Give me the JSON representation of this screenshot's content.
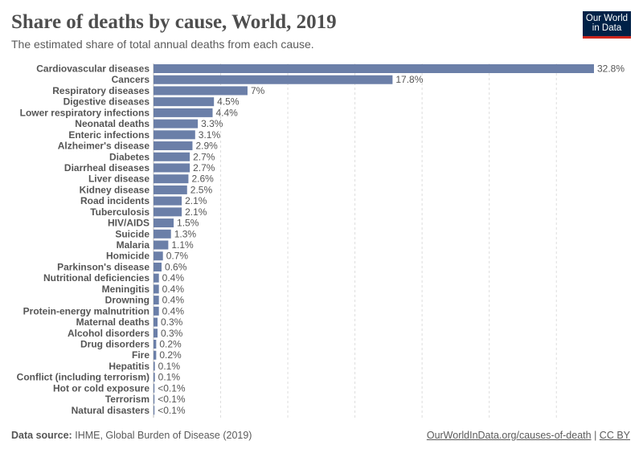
{
  "header": {
    "title": "Share of deaths by cause, World, 2019",
    "subtitle": "The estimated share of total annual deaths from each cause.",
    "logo_text": "Our World in Data"
  },
  "footer": {
    "source_label": "Data source:",
    "source_text": "IHME, Global Burden of Disease (2019)",
    "link": "OurWorldInData.org/causes-of-death",
    "separator": "|",
    "license": "CC BY"
  },
  "colors": {
    "bar": "#6b7fa8",
    "logo_bg": "#002147",
    "logo_accent": "#ce261e"
  },
  "chart_data": {
    "type": "bar",
    "orientation": "horizontal",
    "xlim": [
      0,
      32.8
    ],
    "grid": true,
    "grid_step": 5,
    "unit": "%",
    "categories": [
      "Cardiovascular diseases",
      "Cancers",
      "Respiratory diseases",
      "Digestive diseases",
      "Lower respiratory infections",
      "Neonatal deaths",
      "Enteric infections",
      "Alzheimer's disease",
      "Diabetes",
      "Diarrheal diseases",
      "Liver disease",
      "Kidney disease",
      "Road incidents",
      "Tuberculosis",
      "HIV/AIDS",
      "Suicide",
      "Malaria",
      "Homicide",
      "Parkinson's disease",
      "Nutritional deficiencies",
      "Meningitis",
      "Drowning",
      "Protein-energy malnutrition",
      "Maternal deaths",
      "Alcohol disorders",
      "Drug disorders",
      "Fire",
      "Hepatitis",
      "Conflict (including terrorism)",
      "Hot or cold exposure",
      "Terrorism",
      "Natural disasters"
    ],
    "values": [
      32.8,
      17.8,
      7,
      4.5,
      4.4,
      3.3,
      3.1,
      2.9,
      2.7,
      2.7,
      2.6,
      2.5,
      2.1,
      2.1,
      1.5,
      1.3,
      1.1,
      0.7,
      0.6,
      0.4,
      0.4,
      0.4,
      0.4,
      0.3,
      0.3,
      0.2,
      0.2,
      0.1,
      0.1,
      0.05,
      0.03,
      0.02
    ],
    "data_labels": [
      "32.8%",
      "17.8%",
      "7%",
      "4.5%",
      "4.4%",
      "3.3%",
      "3.1%",
      "2.9%",
      "2.7%",
      "2.7%",
      "2.6%",
      "2.5%",
      "2.1%",
      "2.1%",
      "1.5%",
      "1.3%",
      "1.1%",
      "0.7%",
      "0.6%",
      "0.4%",
      "0.4%",
      "0.4%",
      "0.4%",
      "0.3%",
      "0.3%",
      "0.2%",
      "0.2%",
      "0.1%",
      "0.1%",
      "<0.1%",
      "<0.1%",
      "<0.1%"
    ]
  }
}
